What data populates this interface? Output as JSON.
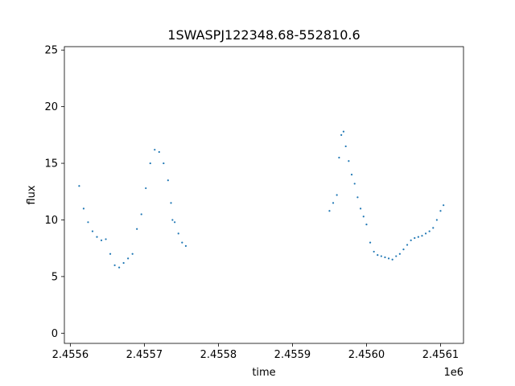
{
  "chart_data": {
    "type": "scatter",
    "title": "1SWASPJ122348.68-552810.6",
    "xlabel": "time",
    "ylabel": "flux",
    "x_offset_label": "1e6",
    "xlim": [
      2455592,
      2456131
    ],
    "ylim": [
      -0.9,
      25.3
    ],
    "grid": false,
    "marker_color": "#1f77b4",
    "x_ticks": [
      {
        "value": 2455600,
        "label": "2.4556"
      },
      {
        "value": 2455700,
        "label": "2.4557"
      },
      {
        "value": 2455800,
        "label": "2.4558"
      },
      {
        "value": 2455900,
        "label": "2.4559"
      },
      {
        "value": 2456000,
        "label": "2.4560"
      },
      {
        "value": 2456100,
        "label": "2.4561"
      }
    ],
    "y_ticks": [
      {
        "value": 0,
        "label": "0"
      },
      {
        "value": 5,
        "label": "5"
      },
      {
        "value": 10,
        "label": "10"
      },
      {
        "value": 15,
        "label": "15"
      },
      {
        "value": 20,
        "label": "20"
      },
      {
        "value": 25,
        "label": "25"
      }
    ],
    "series": [
      {
        "x": [
          2455612,
          2455618,
          2455624,
          2455630,
          2455636,
          2455642,
          2455648,
          2455654,
          2455660,
          2455666,
          2455672,
          2455678,
          2455684,
          2455690,
          2455696,
          2455702,
          2455708,
          2455714,
          2455720,
          2455726,
          2455732,
          2455736,
          2455738,
          2455741,
          2455746,
          2455751,
          2455756
        ],
        "y": [
          13.0,
          11.0,
          9.8,
          9.0,
          8.5,
          8.2,
          8.3,
          7.0,
          6.0,
          5.8,
          6.2,
          6.6,
          7.0,
          9.2,
          10.5,
          12.8,
          15.0,
          16.2,
          16.0,
          15.0,
          13.5,
          11.5,
          10.0,
          9.8,
          8.8,
          8.0,
          7.7
        ]
      },
      {
        "x": [
          2455950,
          2455955,
          2455960,
          2455963,
          2455966,
          2455969,
          2455972,
          2455976,
          2455980,
          2455984,
          2455988,
          2455992,
          2455996,
          2456000,
          2456005,
          2456010,
          2456015,
          2456020,
          2456025,
          2456030,
          2456035,
          2456040,
          2456045,
          2456050,
          2456055,
          2456060,
          2456065,
          2456070,
          2456075,
          2456080,
          2456085,
          2456090,
          2456095,
          2456100,
          2456104
        ],
        "y": [
          10.8,
          11.5,
          12.2,
          15.5,
          17.5,
          17.8,
          16.5,
          15.2,
          14.0,
          13.2,
          12.0,
          11.0,
          10.3,
          9.6,
          8.0,
          7.2,
          6.9,
          6.8,
          6.7,
          6.6,
          6.5,
          6.8,
          7.0,
          7.4,
          7.8,
          8.2,
          8.4,
          8.5,
          8.6,
          8.8,
          9.0,
          9.3,
          10.0,
          10.8,
          11.3
        ]
      }
    ]
  }
}
